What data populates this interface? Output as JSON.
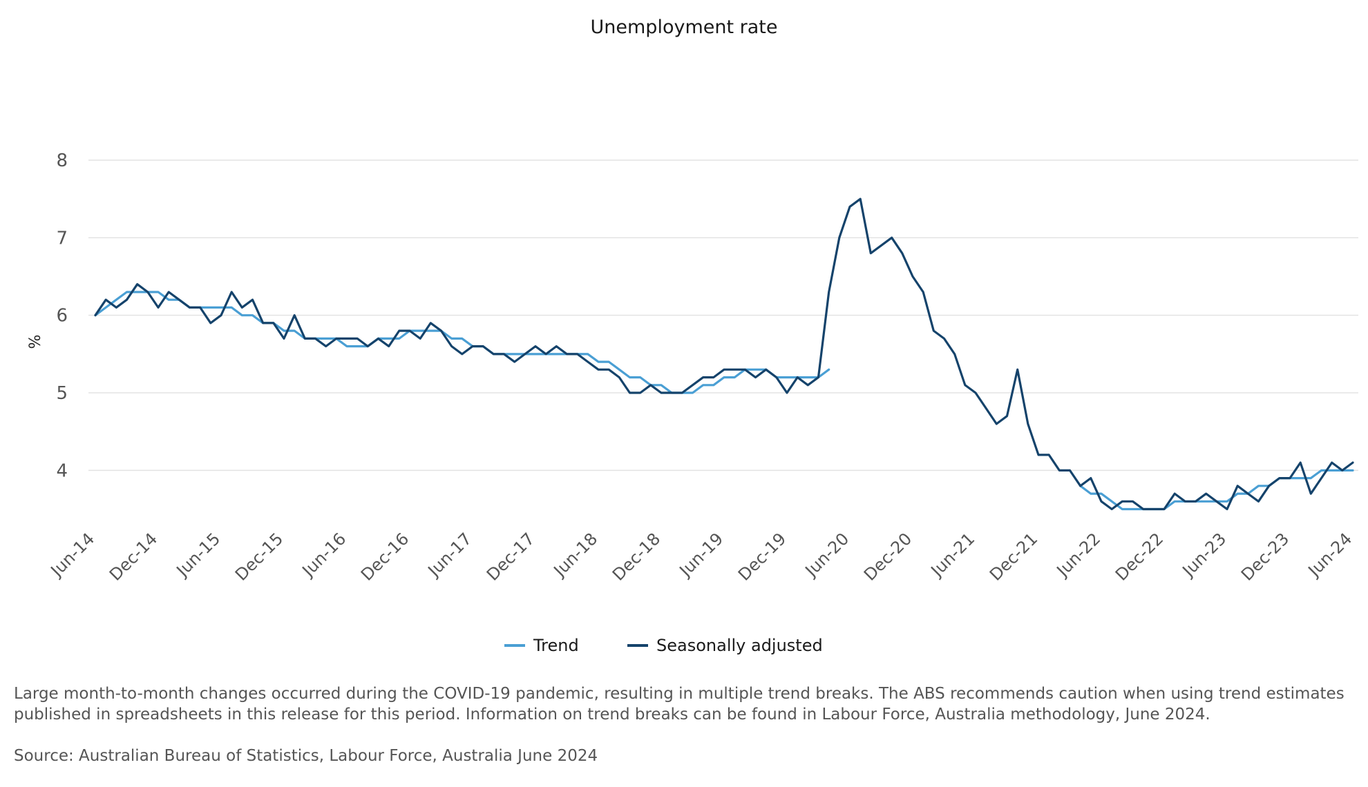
{
  "chart_data": {
    "type": "line",
    "title": "Unemployment rate",
    "ylabel": "%",
    "xlabel": "",
    "ylim": [
      3.3,
      8.0
    ],
    "yticks": [
      4,
      5,
      6,
      7,
      8
    ],
    "xtick_labels": [
      "Jun-14",
      "Dec-14",
      "Jun-15",
      "Dec-15",
      "Jun-16",
      "Dec-16",
      "Jun-17",
      "Dec-17",
      "Jun-18",
      "Dec-18",
      "Jun-19",
      "Dec-19",
      "Jun-20",
      "Dec-20",
      "Jun-21",
      "Dec-21",
      "Jun-22",
      "Dec-22",
      "Jun-23",
      "Dec-23",
      "Jun-24"
    ],
    "grid": true,
    "legend": "bottom-center",
    "colors": {
      "Trend": "#4a9fd4",
      "Seasonally adjusted": "#15436b"
    },
    "series": [
      {
        "name": "Trend",
        "note": "Trend series shown before and after the COVID-19 break",
        "segments": [
          {
            "start": "Jun-14",
            "values": [
              6.0,
              6.1,
              6.2,
              6.3,
              6.3,
              6.3,
              6.3,
              6.2,
              6.2,
              6.1,
              6.1,
              6.1,
              6.1,
              6.1,
              6.0,
              6.0,
              5.9,
              5.9,
              5.8,
              5.8,
              5.7,
              5.7,
              5.7,
              5.7,
              5.6,
              5.6,
              5.6,
              5.7,
              5.7,
              5.7,
              5.8,
              5.8,
              5.8,
              5.8,
              5.7,
              5.7,
              5.6,
              5.6,
              5.5,
              5.5,
              5.5,
              5.5,
              5.5,
              5.5,
              5.5,
              5.5,
              5.5,
              5.5,
              5.4,
              5.4,
              5.3,
              5.2,
              5.2,
              5.1,
              5.1,
              5.0,
              5.0,
              5.0,
              5.1,
              5.1,
              5.2,
              5.2,
              5.3,
              5.3,
              5.3,
              5.2,
              5.2,
              5.2,
              5.2,
              5.2,
              5.3
            ]
          },
          {
            "start": "Apr-22",
            "values": [
              3.8,
              3.7,
              3.7,
              3.6,
              3.5,
              3.5,
              3.5,
              3.5,
              3.5,
              3.6,
              3.6,
              3.6,
              3.6,
              3.6,
              3.6,
              3.7,
              3.7,
              3.8,
              3.8,
              3.9,
              3.9,
              3.9,
              3.9,
              4.0,
              4.0,
              4.0,
              4.0
            ]
          }
        ]
      },
      {
        "name": "Seasonally adjusted",
        "start": "Jun-14",
        "values": [
          6.0,
          6.2,
          6.1,
          6.2,
          6.4,
          6.3,
          6.1,
          6.3,
          6.2,
          6.1,
          6.1,
          5.9,
          6.0,
          6.3,
          6.1,
          6.2,
          5.9,
          5.9,
          5.7,
          6.0,
          5.7,
          5.7,
          5.6,
          5.7,
          5.7,
          5.7,
          5.6,
          5.7,
          5.6,
          5.8,
          5.8,
          5.7,
          5.9,
          5.8,
          5.6,
          5.5,
          5.6,
          5.6,
          5.5,
          5.5,
          5.4,
          5.5,
          5.6,
          5.5,
          5.6,
          5.5,
          5.5,
          5.4,
          5.3,
          5.3,
          5.2,
          5.0,
          5.0,
          5.1,
          5.0,
          5.0,
          5.0,
          5.1,
          5.2,
          5.2,
          5.3,
          5.3,
          5.3,
          5.2,
          5.3,
          5.2,
          5.0,
          5.2,
          5.1,
          5.2,
          6.3,
          7.0,
          7.4,
          7.5,
          6.8,
          6.9,
          7.0,
          6.8,
          6.5,
          6.3,
          5.8,
          5.7,
          5.5,
          5.1,
          5.0,
          4.8,
          4.6,
          4.7,
          5.3,
          4.6,
          4.2,
          4.2,
          4.0,
          4.0,
          3.8,
          3.9,
          3.6,
          3.5,
          3.6,
          3.6,
          3.5,
          3.5,
          3.5,
          3.7,
          3.6,
          3.6,
          3.7,
          3.6,
          3.5,
          3.8,
          3.7,
          3.6,
          3.8,
          3.9,
          3.9,
          4.1,
          3.7,
          3.9,
          4.1,
          4.0,
          4.1
        ]
      }
    ]
  },
  "legend": {
    "trend_label": "Trend",
    "sa_label": "Seasonally adjusted"
  },
  "notes": {
    "caution": "Large month-to-month changes occurred during the COVID-19 pandemic, resulting in multiple trend breaks. The ABS recommends caution when using trend estimates published in spreadsheets in this release for this period. Information on trend breaks can be found in Labour Force, Australia methodology, June 2024.",
    "source": "Source: Australian Bureau of Statistics, Labour Force, Australia June 2024"
  }
}
